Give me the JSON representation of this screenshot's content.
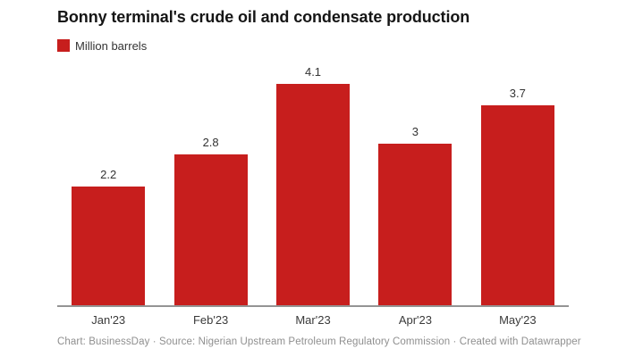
{
  "header": {
    "title": "Bonny terminal's crude oil and condensate production"
  },
  "legend": {
    "label": "Million barrels",
    "swatch_color": "#c71e1d"
  },
  "chart_data": {
    "type": "bar",
    "title": "Bonny terminal's crude oil and condensate production",
    "series_label": "Million barrels",
    "categories": [
      "Jan'23",
      "Feb'23",
      "Mar'23",
      "Apr'23",
      "May'23"
    ],
    "values": [
      2.2,
      2.8,
      4.1,
      3,
      3.7
    ],
    "xlabel": "",
    "ylabel": "Million barrels",
    "ylim": [
      0,
      4.5
    ],
    "bar_color": "#c71e1d",
    "axis_line_color": "#949494",
    "value_labels": true,
    "grid": false,
    "legend_position": "top-left"
  },
  "footer": {
    "text": "Chart: BusinessDay · Source: Nigerian Upstream Petroleum Regulatory Commission · Created with Datawrapper"
  }
}
